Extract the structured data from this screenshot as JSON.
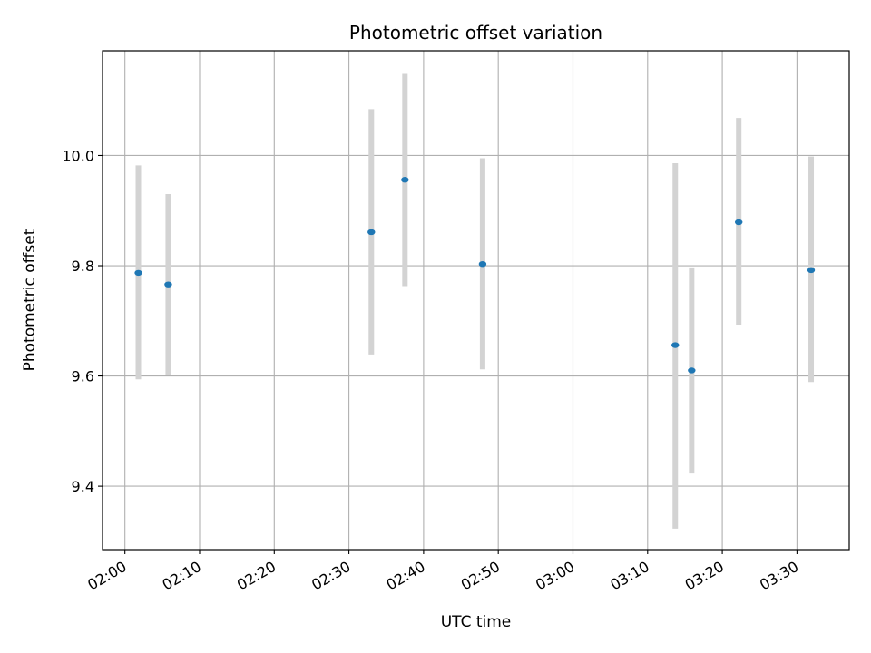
{
  "chart_data": {
    "type": "scatter",
    "title": "Photometric offset variation",
    "xlabel": "UTC time",
    "ylabel": "Photometric offset",
    "grid": true,
    "xlim": [
      "01:57",
      "03:37"
    ],
    "ylim": [
      9.285,
      10.19
    ],
    "x_ticks": [
      "02:00",
      "02:10",
      "02:20",
      "02:30",
      "02:40",
      "02:50",
      "03:00",
      "03:10",
      "03:20",
      "03:30"
    ],
    "y_ticks": [
      9.4,
      9.6,
      9.8,
      10.0
    ],
    "y_tick_labels": [
      "9.4",
      "9.6",
      "9.8",
      "10.0"
    ],
    "colors": {
      "point": "#1f77b4",
      "errorbar": "#d3d3d3",
      "grid": "#b0b0b0"
    },
    "points": [
      {
        "time": "02:01:48",
        "y": 9.787,
        "y_low": 9.594,
        "y_high": 9.982
      },
      {
        "time": "02:05:48",
        "y": 9.766,
        "y_low": 9.601,
        "y_high": 9.93
      },
      {
        "time": "02:33:00",
        "y": 9.861,
        "y_low": 9.639,
        "y_high": 10.084
      },
      {
        "time": "02:37:30",
        "y": 9.956,
        "y_low": 9.763,
        "y_high": 10.148
      },
      {
        "time": "02:47:54",
        "y": 9.803,
        "y_low": 9.612,
        "y_high": 9.995
      },
      {
        "time": "03:13:42",
        "y": 9.656,
        "y_low": 9.323,
        "y_high": 9.986
      },
      {
        "time": "03:15:54",
        "y": 9.61,
        "y_low": 9.423,
        "y_high": 9.797
      },
      {
        "time": "03:22:12",
        "y": 9.879,
        "y_low": 9.693,
        "y_high": 10.068
      },
      {
        "time": "03:31:54",
        "y": 9.792,
        "y_low": 9.589,
        "y_high": 9.998
      }
    ]
  }
}
